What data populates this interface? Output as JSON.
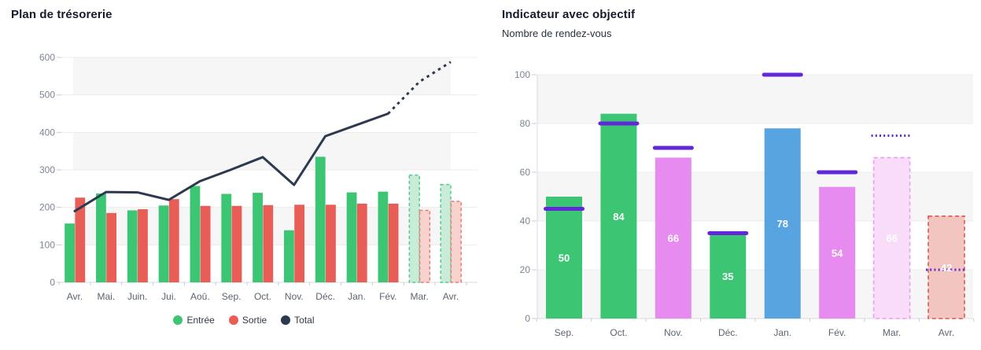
{
  "chart_data": [
    {
      "type": "bar+line combo",
      "title": "Plan de trésorerie",
      "categories": [
        "Avr.",
        "Mai.",
        "Juin.",
        "Jui.",
        "Aoû.",
        "Sep.",
        "Oct.",
        "Nov.",
        "Déc.",
        "Jan.",
        "Fév.",
        "Mar.",
        "Avr."
      ],
      "ylim": [
        0,
        600
      ],
      "ytick_step": 100,
      "yticks": [
        "0",
        "100",
        "200",
        "300",
        "400",
        "500",
        "600"
      ],
      "grid": "horizontal lines with alternating shaded bands",
      "legend_position": "bottom",
      "forecast_bar_start_index": 11,
      "line_dotted_from_index": 10,
      "series": [
        {
          "name": "Entrée",
          "type": "bar",
          "color": "#3cc674",
          "forecast_fill": "#c9ecd8",
          "forecast_border": "#55cb8b",
          "values": [
            157,
            237,
            192,
            205,
            257,
            236,
            239,
            139,
            335,
            240,
            242,
            286,
            261
          ]
        },
        {
          "name": "Sortie",
          "type": "bar",
          "color": "#e95d57",
          "forecast_fill": "#f7d2cf",
          "forecast_border": "#ec7a72",
          "values": [
            226,
            185,
            195,
            222,
            204,
            204,
            206,
            207,
            207,
            210,
            210,
            192,
            216
          ]
        },
        {
          "name": "Total",
          "type": "line",
          "color": "#2c3950",
          "values": [
            190,
            241,
            240,
            220,
            270,
            301,
            334,
            260,
            390,
            420,
            450,
            535,
            588
          ]
        }
      ]
    },
    {
      "type": "bar",
      "title": "Indicateur avec objectif",
      "subtitle": "Nombre de rendez-vous",
      "categories": [
        "Sep.",
        "Oct.",
        "Nov.",
        "Déc.",
        "Jan.",
        "Fév.",
        "Mar.",
        "Avr."
      ],
      "ylim": [
        0,
        100
      ],
      "ytick_step": 20,
      "yticks": [
        "0",
        "20",
        "40",
        "60",
        "80",
        "100"
      ],
      "grid": "horizontal lines with alternating shaded bands",
      "target_color": "#6127d8",
      "value_label_color": "#ffffff",
      "bars": [
        {
          "value": 50,
          "label": "50",
          "target": 45,
          "color": "#3cc674",
          "forecast": false
        },
        {
          "value": 84,
          "label": "84",
          "target": 80,
          "color": "#3cc674",
          "forecast": false
        },
        {
          "value": 66,
          "label": "66",
          "target": 70,
          "color": "#e88bf0",
          "forecast": false
        },
        {
          "value": 35,
          "label": "35",
          "target": 35,
          "color": "#3cc674",
          "forecast": false
        },
        {
          "value": 78,
          "label": "78",
          "target": 100,
          "color": "#57a4e0",
          "forecast": false
        },
        {
          "value": 54,
          "label": "54",
          "target": 60,
          "color": "#e88bf0",
          "forecast": false
        },
        {
          "value": 66,
          "label": "66",
          "target": 75,
          "color": "#e88bf0",
          "forecast": true,
          "forecast_fill": "#f8dcfa",
          "forecast_border": "#ee9bf2"
        },
        {
          "value": 42,
          "label": "42",
          "target": 20,
          "color": "#e95d57",
          "forecast": true,
          "forecast_fill": "#f2c5c1",
          "forecast_border": "#e2574b"
        }
      ]
    }
  ],
  "palette": {
    "band": "#f6f6f7",
    "gridline": "#ececec",
    "axis_line": "#d8dbe0",
    "tick": "#c9ccd1",
    "y_label": "#7b8494",
    "x_label": "#5b6470",
    "title": "#131b2c"
  }
}
